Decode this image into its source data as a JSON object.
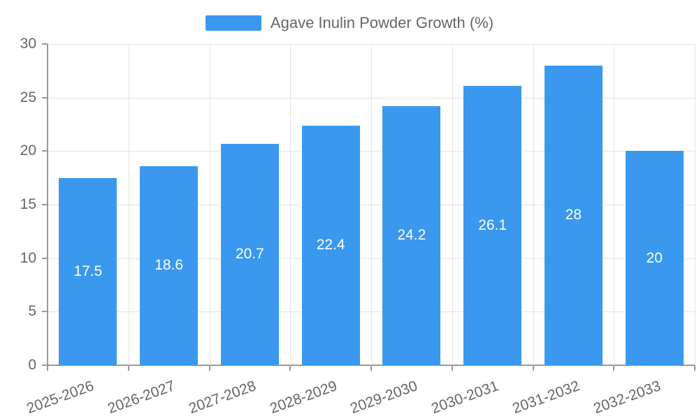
{
  "chart_data": {
    "type": "bar",
    "legend_label": "Agave Inulin Powder Growth (%)",
    "legend_position": "top",
    "categories": [
      "2025-2026",
      "2026-2027",
      "2027-2028",
      "2028-2029",
      "2029-2030",
      "2030-2031",
      "2031-2032",
      "2032-2033"
    ],
    "values": [
      17.5,
      18.6,
      20.7,
      22.4,
      24.2,
      26.1,
      28,
      20
    ],
    "bar_labels": [
      "17.5",
      "18.6",
      "20.7",
      "22.4",
      "24.2",
      "26.1",
      "28",
      "20"
    ],
    "yticks": [
      0,
      5,
      10,
      15,
      20,
      25,
      30
    ],
    "ylim": [
      0,
      30
    ],
    "xlabel": "",
    "ylabel": "",
    "grid": true,
    "colors": {
      "bar": "#3a99ee",
      "grid_line": "#e4e4e4",
      "axis_line": "#999999",
      "tick": "#999999",
      "axis_text": "#666666",
      "legend_text": "#666666",
      "bar_value_text": "#ffffff",
      "background": "#ffffff"
    }
  }
}
